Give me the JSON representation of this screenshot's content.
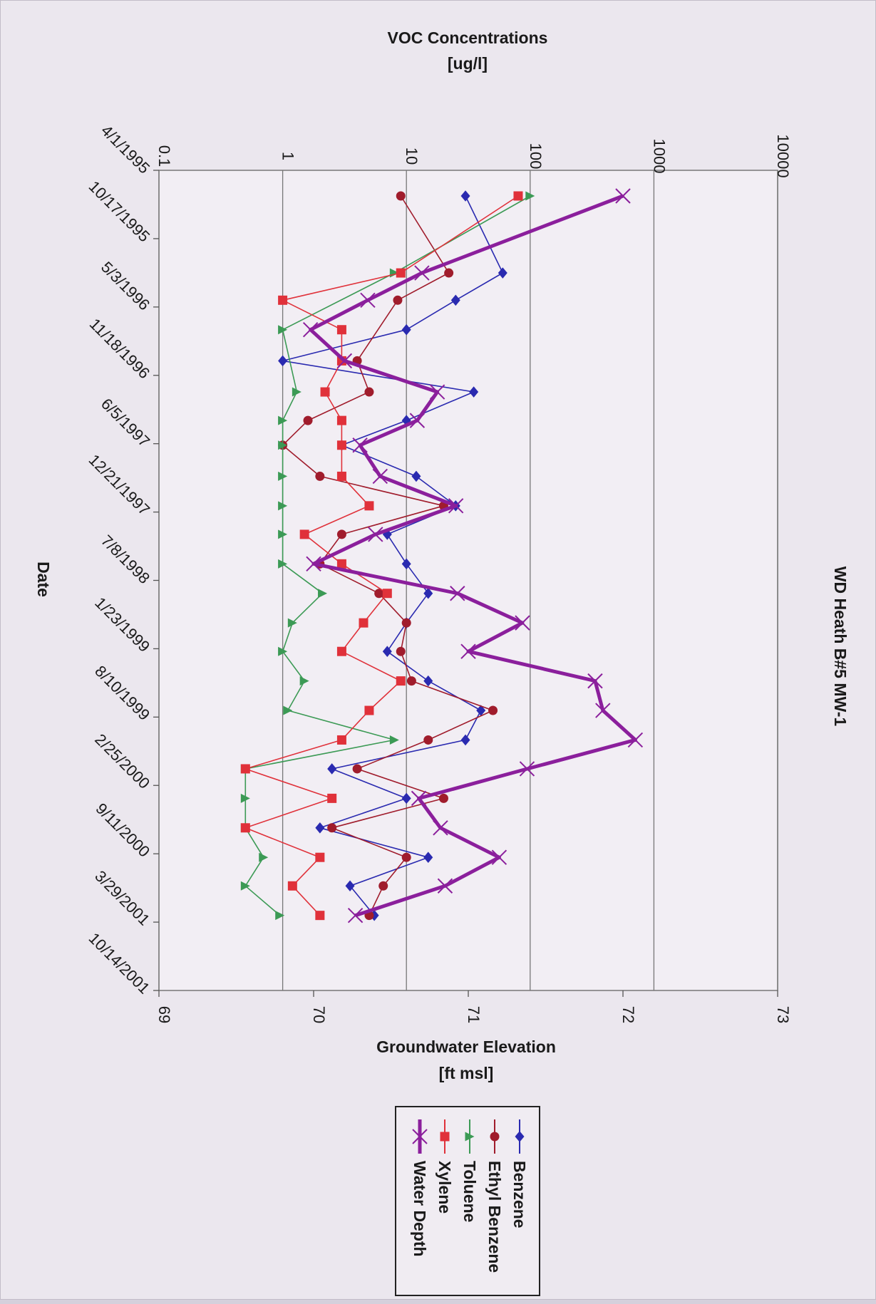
{
  "chart_data": {
    "type": "line",
    "title": "WD Heath B#5 MW-1",
    "date_axis": {
      "label": "Date",
      "ticks": [
        "4/1/1995",
        "10/17/1995",
        "5/3/1996",
        "11/18/1996",
        "6/5/1997",
        "12/21/1997",
        "7/8/1998",
        "1/23/1999",
        "8/10/1999",
        "2/25/2000",
        "9/11/2000",
        "3/29/2001",
        "10/14/2001"
      ],
      "range": [
        "1995-04-01",
        "2002-04-01"
      ]
    },
    "voc_axis": {
      "label_line1": "VOC Concentrations",
      "label_line2": "[ug/l]",
      "scale": "log",
      "range": [
        0.1,
        10000
      ],
      "ticks": [
        "0.1",
        "1",
        "10",
        "100",
        "1000",
        "10000"
      ]
    },
    "elevation_axis": {
      "label_line1": "Groundwater Elevation",
      "label_line2": "[ft msl]",
      "scale": "linear",
      "range": [
        69,
        73
      ],
      "ticks": [
        "69",
        "70",
        "71",
        "72",
        "73"
      ]
    },
    "grid": true,
    "legend_position": "bottom-center",
    "series": [
      {
        "name": "Benzene",
        "axis": "voc",
        "color": "#2a2ab0",
        "marker": "diamond",
        "points": [
          [
            "1995-06-20",
            30
          ],
          [
            "1996-02-15",
            60
          ],
          [
            "1996-05-10",
            25
          ],
          [
            "1996-08-10",
            10
          ],
          [
            "1996-11-15",
            1
          ],
          [
            "1997-02-20",
            35
          ],
          [
            "1997-05-20",
            10
          ],
          [
            "1997-08-05",
            3
          ],
          [
            "1997-11-10",
            12
          ],
          [
            "1998-02-10",
            25
          ],
          [
            "1998-05-10",
            7
          ],
          [
            "1998-08-10",
            10
          ],
          [
            "1998-11-10",
            15
          ],
          [
            "1999-02-10",
            10
          ],
          [
            "1999-05-10",
            7
          ],
          [
            "1999-08-10",
            15
          ],
          [
            "1999-11-10",
            40
          ],
          [
            "2000-02-10",
            30
          ],
          [
            "2000-05-10",
            2.5
          ],
          [
            "2000-08-10",
            10
          ],
          [
            "2000-11-10",
            2
          ],
          [
            "2001-02-10",
            15
          ],
          [
            "2001-05-10",
            3.5
          ],
          [
            "2001-08-10",
            5.5
          ]
        ]
      },
      {
        "name": "Ethyl Benzene",
        "axis": "voc",
        "color": "#a01c2c",
        "marker": "circle",
        "points": [
          [
            "1995-06-20",
            9
          ],
          [
            "1996-02-15",
            22
          ],
          [
            "1996-05-10",
            8.5
          ],
          [
            "1996-11-15",
            4
          ],
          [
            "1997-02-20",
            5
          ],
          [
            "1997-05-20",
            1.6
          ],
          [
            "1997-08-05",
            1
          ],
          [
            "1997-11-10",
            2
          ],
          [
            "1998-02-10",
            20
          ],
          [
            "1998-05-10",
            3
          ],
          [
            "1998-08-10",
            2
          ],
          [
            "1998-11-10",
            6
          ],
          [
            "1999-02-10",
            10
          ],
          [
            "1999-05-10",
            9
          ],
          [
            "1999-08-10",
            11
          ],
          [
            "1999-11-10",
            50
          ],
          [
            "2000-02-10",
            15
          ],
          [
            "2000-05-10",
            4
          ],
          [
            "2000-08-10",
            20
          ],
          [
            "2000-11-10",
            2.5
          ],
          [
            "2001-02-10",
            10
          ],
          [
            "2001-05-10",
            6.5
          ],
          [
            "2001-08-10",
            5
          ]
        ]
      },
      {
        "name": "Toluene",
        "axis": "voc",
        "color": "#3c9a55",
        "marker": "triangle",
        "points": [
          [
            "1995-06-20",
            100
          ],
          [
            "1996-02-15",
            8
          ],
          [
            "1996-08-10",
            1
          ],
          [
            "1997-02-20",
            1.3
          ],
          [
            "1997-05-20",
            1
          ],
          [
            "1997-08-05",
            1
          ],
          [
            "1997-11-10",
            1
          ],
          [
            "1998-02-10",
            1
          ],
          [
            "1998-05-10",
            1
          ],
          [
            "1998-08-10",
            1
          ],
          [
            "1998-11-10",
            2.1
          ],
          [
            "1999-02-10",
            1.2
          ],
          [
            "1999-05-10",
            1
          ],
          [
            "1999-08-10",
            1.5
          ],
          [
            "1999-11-10",
            1.1
          ],
          [
            "2000-02-10",
            8
          ],
          [
            "2000-05-10",
            0.5
          ],
          [
            "2000-08-10",
            0.5
          ],
          [
            "2000-11-10",
            0.5
          ],
          [
            "2001-02-10",
            0.7
          ],
          [
            "2001-05-10",
            0.5
          ],
          [
            "2001-08-10",
            0.95
          ]
        ]
      },
      {
        "name": "Xylene",
        "axis": "voc",
        "color": "#e0313a",
        "marker": "square",
        "points": [
          [
            "1995-06-20",
            80
          ],
          [
            "1996-02-15",
            9
          ],
          [
            "1996-05-10",
            1
          ],
          [
            "1996-08-10",
            3
          ],
          [
            "1996-11-15",
            3
          ],
          [
            "1997-02-20",
            2.2
          ],
          [
            "1997-05-20",
            3
          ],
          [
            "1997-08-05",
            3
          ],
          [
            "1997-11-10",
            3
          ],
          [
            "1998-02-10",
            5
          ],
          [
            "1998-05-10",
            1.5
          ],
          [
            "1998-08-10",
            3
          ],
          [
            "1998-11-10",
            7
          ],
          [
            "1999-02-10",
            4.5
          ],
          [
            "1999-05-10",
            3
          ],
          [
            "1999-08-10",
            9
          ],
          [
            "1999-11-10",
            5
          ],
          [
            "2000-02-10",
            3
          ],
          [
            "2000-05-10",
            0.5
          ],
          [
            "2000-08-10",
            2.5
          ],
          [
            "2000-11-10",
            0.5
          ],
          [
            "2001-02-10",
            2
          ],
          [
            "2001-05-10",
            1.2
          ],
          [
            "2001-08-10",
            2
          ]
        ]
      },
      {
        "name": "Water Depth",
        "axis": "elevation",
        "color": "#8b1f9c",
        "marker": "x",
        "points": [
          [
            "1995-06-20",
            72.0
          ],
          [
            "1996-02-15",
            70.7
          ],
          [
            "1996-05-10",
            70.35
          ],
          [
            "1996-08-10",
            69.98
          ],
          [
            "1996-11-15",
            70.2
          ],
          [
            "1997-02-20",
            70.8
          ],
          [
            "1997-05-20",
            70.67
          ],
          [
            "1997-08-05",
            70.3
          ],
          [
            "1997-11-10",
            70.43
          ],
          [
            "1998-02-10",
            70.92
          ],
          [
            "1998-05-10",
            70.4
          ],
          [
            "1998-08-10",
            70.0
          ],
          [
            "1998-11-10",
            70.93
          ],
          [
            "1999-02-10",
            71.35
          ],
          [
            "1999-05-10",
            71.0
          ],
          [
            "1999-08-10",
            71.82
          ],
          [
            "1999-11-10",
            71.87
          ],
          [
            "2000-02-10",
            72.08
          ],
          [
            "2000-05-10",
            71.38
          ],
          [
            "2000-08-10",
            70.68
          ],
          [
            "2000-11-10",
            70.82
          ],
          [
            "2001-02-10",
            71.2
          ],
          [
            "2001-05-10",
            70.85
          ],
          [
            "2001-08-10",
            70.27
          ]
        ]
      }
    ]
  }
}
